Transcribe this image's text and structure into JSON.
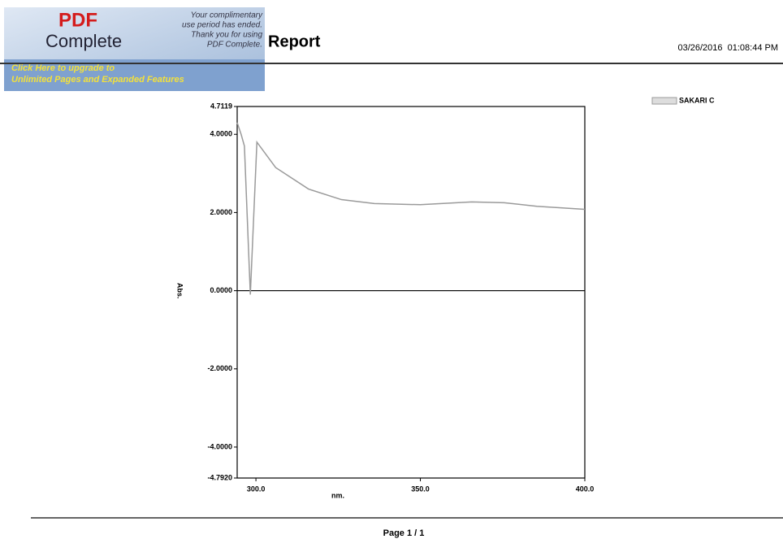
{
  "banner": {
    "logo": "PDF",
    "product": "Complete",
    "notice": [
      "Your complimentary",
      "use period has ended.",
      "Thank you for using",
      "PDF Complete."
    ],
    "upgrade": [
      "Click Here to upgrade to",
      "Unlimited Pages and Expanded Features"
    ]
  },
  "header": {
    "title": "Report",
    "datetime": "03/26/2016  01:08:44 PM"
  },
  "chart_data": {
    "type": "line",
    "xlabel": "nm.",
    "ylabel": "Abs.",
    "x": [
      294.3,
      295.5,
      296.5,
      298.3,
      300.3,
      306,
      316,
      326,
      336,
      350,
      365.6,
      375.5,
      385.4,
      400
    ],
    "series": [
      {
        "name": "SAKARI C",
        "color": "#9a9a9a",
        "values": [
          4.3,
          4.0,
          3.7,
          -0.1,
          3.8,
          3.15,
          2.6,
          2.33,
          2.23,
          2.2,
          2.27,
          2.25,
          2.16,
          2.08
        ]
      }
    ],
    "xlim": [
      294.3,
      400
    ],
    "xticks": [
      {
        "value": 300,
        "label": "300.0"
      },
      {
        "value": 350,
        "label": "350.0"
      },
      {
        "value": 400,
        "label": "400.0"
      }
    ],
    "ylim": [
      -4.792,
      4.7119
    ],
    "yticks": [
      {
        "value": -4.792,
        "label": "-4.7920"
      },
      {
        "value": -4,
        "label": "-4.0000"
      },
      {
        "value": -2,
        "label": "-2.0000"
      },
      {
        "value": 0,
        "label": "0.0000"
      },
      {
        "value": 2,
        "label": "2.0000"
      },
      {
        "value": 4,
        "label": "4.0000"
      },
      4.7119
    ],
    "zero_line": true,
    "legend": "top-right"
  },
  "footer": {
    "page": "Page 1 / 1"
  }
}
